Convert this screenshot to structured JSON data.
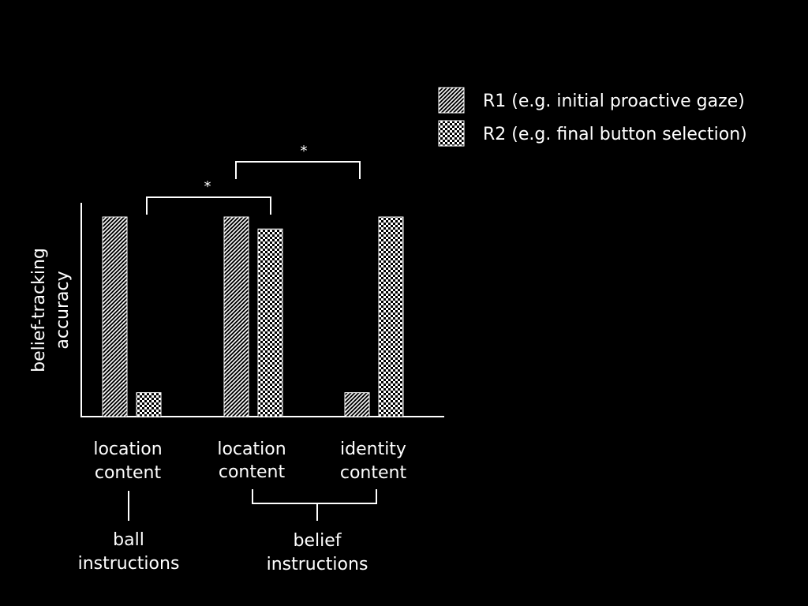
{
  "chart_data": {
    "type": "bar",
    "ylabel_line1": "belief-tracking",
    "ylabel_line2": "accuracy",
    "ylim": [
      0,
      1
    ],
    "grid": false,
    "legend_position": "top-right",
    "categories": [
      {
        "line1": "location",
        "line2": "content"
      },
      {
        "line1": "location",
        "line2": "content"
      },
      {
        "line1": "identity",
        "line2": "content"
      }
    ],
    "series": [
      {
        "name": "R1 (e.g. initial proactive gaze)",
        "pattern": "diagonal-hatch",
        "values": [
          1.0,
          1.0,
          0.12
        ]
      },
      {
        "name": "R2 (e.g. final button selection)",
        "pattern": "checkerboard",
        "values": [
          0.12,
          0.94,
          1.0
        ]
      }
    ],
    "groups": [
      {
        "line1": "ball",
        "line2": "instructions",
        "categories": [
          0
        ]
      },
      {
        "line1": "belief",
        "line2": "instructions",
        "categories": [
          1,
          2
        ]
      }
    ],
    "significance": [
      {
        "label": "*",
        "from_category": 0,
        "to_category": 1
      },
      {
        "label": "*",
        "from_category": 1,
        "to_category": 2
      }
    ],
    "colors": {
      "background": "#000000",
      "foreground": "#ffffff"
    }
  }
}
